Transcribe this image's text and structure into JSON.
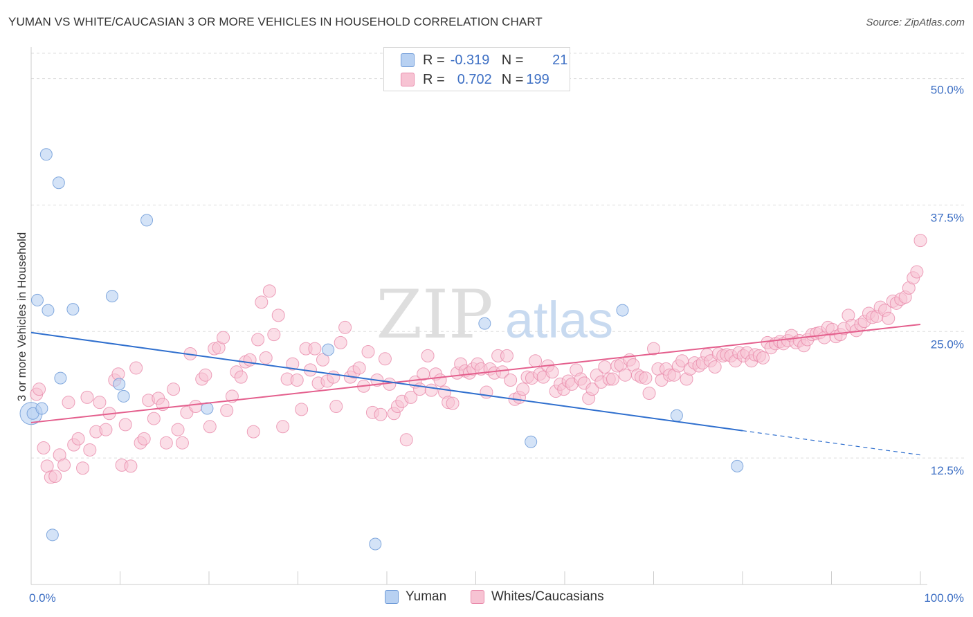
{
  "title": "YUMAN VS WHITE/CAUCASIAN 3 OR MORE VEHICLES IN HOUSEHOLD CORRELATION CHART",
  "source": "Source: ZipAtlas.com",
  "watermark": {
    "zip": "ZIP",
    "atlas": "atlas"
  },
  "legend": {
    "series": [
      {
        "name": "Yuman",
        "r_label": "R =",
        "r_value": "-0.319",
        "n_label": "N =",
        "n_value": "21"
      },
      {
        "name": "Whites/Caucasians",
        "r_label": "R =",
        "r_value": "0.702",
        "n_label": "N =",
        "n_value": "199"
      }
    ]
  },
  "colors": {
    "yuman_fill": "#b8d1f2",
    "yuman_stroke": "#6f9bd8",
    "yuman_line": "#2f6fce",
    "white_fill": "#f7c3d3",
    "white_stroke": "#e989aa",
    "white_line": "#e45f8d",
    "axis_text": "#3d6fc4",
    "grid": "#dddddd"
  },
  "chart_data": {
    "type": "scatter",
    "title": "YUMAN VS WHITE/CAUCASIAN 3 OR MORE VEHICLES IN HOUSEHOLD CORRELATION CHART",
    "xlabel": "",
    "ylabel": "3 or more Vehicles in Household",
    "xlim": [
      0,
      100
    ],
    "ylim": [
      0,
      52.5
    ],
    "x_tick_labels": [
      "0.0%",
      "100.0%"
    ],
    "y_ticks": [
      12.5,
      25.0,
      37.5,
      50.0
    ],
    "y_tick_labels": [
      "12.5%",
      "25.0%",
      "37.5%",
      "50.0%"
    ],
    "grid": true,
    "legend_position": "top-center",
    "series": [
      {
        "name": "Yuman",
        "r": -0.319,
        "n": 21,
        "trend": {
          "x_start": 0,
          "y_start": 24.9,
          "x_solid_end": 80,
          "y_solid_end": 15.2,
          "x_end": 100,
          "y_end": 12.8
        },
        "points": [
          [
            0.2,
            16.9
          ],
          [
            0.7,
            28.1
          ],
          [
            1.2,
            17.4
          ],
          [
            1.7,
            42.5
          ],
          [
            1.9,
            27.1
          ],
          [
            2.4,
            4.9
          ],
          [
            3.1,
            39.7
          ],
          [
            3.3,
            20.4
          ],
          [
            4.7,
            27.2
          ],
          [
            9.1,
            28.5
          ],
          [
            9.9,
            19.8
          ],
          [
            10.4,
            18.6
          ],
          [
            13.0,
            36.0
          ],
          [
            19.8,
            17.4
          ],
          [
            33.4,
            23.2
          ],
          [
            38.7,
            4.0
          ],
          [
            51.0,
            25.8
          ],
          [
            56.2,
            14.1
          ],
          [
            66.5,
            27.1
          ],
          [
            72.6,
            16.7
          ],
          [
            79.4,
            11.7
          ]
        ]
      },
      {
        "name": "Whites/Caucasians",
        "r": 0.702,
        "n": 199,
        "trend": {
          "x_start": 0,
          "y_start": 16.0,
          "x_end": 100,
          "y_end": 25.7
        },
        "points": [
          [
            0.6,
            18.8
          ],
          [
            0.9,
            19.3
          ],
          [
            1.4,
            13.5
          ],
          [
            1.8,
            11.7
          ],
          [
            2.2,
            10.6
          ],
          [
            2.7,
            10.7
          ],
          [
            3.2,
            12.8
          ],
          [
            3.7,
            11.8
          ],
          [
            4.2,
            18.0
          ],
          [
            4.8,
            13.8
          ],
          [
            5.3,
            14.4
          ],
          [
            5.8,
            11.5
          ],
          [
            6.3,
            18.5
          ],
          [
            6.6,
            13.3
          ],
          [
            7.3,
            15.1
          ],
          [
            7.7,
            18.0
          ],
          [
            8.4,
            15.3
          ],
          [
            8.8,
            16.9
          ],
          [
            9.4,
            20.2
          ],
          [
            9.8,
            20.8
          ],
          [
            10.2,
            11.8
          ],
          [
            10.6,
            15.8
          ],
          [
            11.2,
            11.7
          ],
          [
            11.8,
            21.4
          ],
          [
            12.3,
            14.0
          ],
          [
            12.7,
            14.4
          ],
          [
            13.2,
            18.2
          ],
          [
            13.8,
            16.4
          ],
          [
            14.3,
            18.4
          ],
          [
            14.8,
            17.8
          ],
          [
            15.2,
            14.0
          ],
          [
            16.0,
            19.3
          ],
          [
            16.5,
            15.3
          ],
          [
            17.0,
            14.0
          ],
          [
            17.5,
            17.0
          ],
          [
            17.9,
            22.8
          ],
          [
            18.5,
            17.6
          ],
          [
            19.2,
            20.3
          ],
          [
            19.6,
            20.7
          ],
          [
            20.1,
            15.6
          ],
          [
            20.6,
            23.3
          ],
          [
            21.1,
            23.4
          ],
          [
            21.6,
            24.4
          ],
          [
            22.0,
            17.2
          ],
          [
            22.6,
            18.6
          ],
          [
            23.1,
            21.0
          ],
          [
            23.6,
            20.5
          ],
          [
            24.1,
            22.0
          ],
          [
            24.6,
            22.2
          ],
          [
            25.0,
            15.1
          ],
          [
            25.5,
            24.2
          ],
          [
            25.9,
            27.9
          ],
          [
            26.4,
            22.4
          ],
          [
            26.8,
            29.0
          ],
          [
            27.3,
            24.7
          ],
          [
            27.8,
            26.6
          ],
          [
            28.3,
            15.6
          ],
          [
            28.8,
            20.3
          ],
          [
            29.4,
            21.8
          ],
          [
            29.9,
            20.2
          ],
          [
            30.4,
            17.3
          ],
          [
            30.9,
            23.3
          ],
          [
            31.4,
            21.2
          ],
          [
            31.9,
            23.3
          ],
          [
            32.3,
            19.9
          ],
          [
            32.8,
            22.2
          ],
          [
            33.3,
            20.1
          ],
          [
            34.0,
            20.5
          ],
          [
            34.3,
            17.6
          ],
          [
            34.8,
            23.9
          ],
          [
            35.3,
            25.4
          ],
          [
            35.9,
            20.5
          ],
          [
            36.3,
            21.0
          ],
          [
            36.9,
            21.4
          ],
          [
            37.4,
            19.6
          ],
          [
            37.9,
            23.0
          ],
          [
            38.4,
            17.0
          ],
          [
            38.9,
            20.2
          ],
          [
            39.3,
            16.8
          ],
          [
            39.8,
            22.3
          ],
          [
            40.3,
            19.8
          ],
          [
            40.8,
            16.9
          ],
          [
            41.2,
            17.6
          ],
          [
            41.7,
            18.1
          ],
          [
            42.2,
            14.3
          ],
          [
            42.7,
            18.5
          ],
          [
            43.2,
            20.0
          ],
          [
            43.7,
            19.3
          ],
          [
            44.1,
            20.8
          ],
          [
            44.6,
            22.6
          ],
          [
            45.0,
            19.2
          ],
          [
            45.5,
            20.8
          ],
          [
            46.0,
            20.2
          ],
          [
            46.5,
            19.0
          ],
          [
            46.9,
            18.0
          ],
          [
            47.4,
            17.9
          ],
          [
            47.9,
            20.9
          ],
          [
            48.3,
            21.8
          ],
          [
            48.8,
            21.1
          ],
          [
            49.3,
            20.9
          ],
          [
            49.7,
            21.3
          ],
          [
            50.2,
            21.8
          ],
          [
            50.6,
            21.3
          ],
          [
            51.2,
            19.0
          ],
          [
            51.6,
            21.3
          ],
          [
            52.1,
            20.9
          ],
          [
            52.5,
            22.6
          ],
          [
            53.0,
            21.0
          ],
          [
            53.5,
            22.6
          ],
          [
            53.9,
            20.2
          ],
          [
            54.4,
            18.3
          ],
          [
            54.9,
            18.5
          ],
          [
            55.3,
            19.3
          ],
          [
            55.8,
            20.5
          ],
          [
            56.3,
            20.4
          ],
          [
            56.7,
            22.1
          ],
          [
            57.2,
            20.8
          ],
          [
            57.6,
            20.5
          ],
          [
            58.1,
            21.6
          ],
          [
            58.6,
            21.0
          ],
          [
            59.0,
            19.1
          ],
          [
            59.5,
            19.8
          ],
          [
            59.9,
            19.3
          ],
          [
            60.4,
            20.1
          ],
          [
            60.8,
            19.8
          ],
          [
            61.3,
            21.2
          ],
          [
            61.8,
            20.3
          ],
          [
            62.2,
            19.9
          ],
          [
            62.7,
            18.4
          ],
          [
            63.1,
            19.3
          ],
          [
            63.6,
            20.7
          ],
          [
            64.1,
            20.0
          ],
          [
            64.5,
            21.5
          ],
          [
            65.0,
            20.3
          ],
          [
            65.4,
            20.3
          ],
          [
            65.9,
            21.6
          ],
          [
            66.3,
            21.7
          ],
          [
            66.8,
            20.7
          ],
          [
            67.3,
            22.2
          ],
          [
            67.7,
            21.7
          ],
          [
            68.2,
            20.7
          ],
          [
            68.6,
            20.5
          ],
          [
            69.1,
            20.4
          ],
          [
            69.5,
            18.9
          ],
          [
            70.0,
            23.3
          ],
          [
            70.5,
            21.3
          ],
          [
            70.9,
            20.2
          ],
          [
            71.4,
            21.3
          ],
          [
            71.8,
            20.7
          ],
          [
            72.3,
            20.7
          ],
          [
            72.8,
            21.6
          ],
          [
            73.2,
            22.1
          ],
          [
            73.7,
            20.3
          ],
          [
            74.1,
            21.3
          ],
          [
            74.6,
            21.9
          ],
          [
            75.1,
            21.6
          ],
          [
            75.5,
            21.9
          ],
          [
            76.0,
            22.7
          ],
          [
            76.4,
            22.1
          ],
          [
            76.9,
            21.5
          ],
          [
            77.3,
            22.8
          ],
          [
            77.8,
            22.6
          ],
          [
            78.2,
            22.7
          ],
          [
            78.7,
            22.6
          ],
          [
            79.2,
            22.1
          ],
          [
            79.6,
            22.9
          ],
          [
            80.1,
            22.6
          ],
          [
            80.5,
            22.9
          ],
          [
            81.0,
            22.1
          ],
          [
            81.4,
            22.7
          ],
          [
            81.9,
            22.6
          ],
          [
            82.3,
            22.4
          ],
          [
            82.8,
            23.9
          ],
          [
            83.2,
            23.4
          ],
          [
            83.7,
            23.8
          ],
          [
            84.2,
            24.0
          ],
          [
            84.6,
            23.8
          ],
          [
            85.1,
            24.1
          ],
          [
            85.5,
            24.6
          ],
          [
            86.0,
            23.9
          ],
          [
            86.4,
            24.1
          ],
          [
            86.9,
            23.6
          ],
          [
            87.3,
            24.2
          ],
          [
            87.8,
            24.7
          ],
          [
            88.3,
            24.8
          ],
          [
            88.7,
            24.9
          ],
          [
            89.2,
            24.4
          ],
          [
            89.6,
            25.4
          ],
          [
            90.1,
            25.2
          ],
          [
            90.5,
            24.5
          ],
          [
            91.0,
            24.7
          ],
          [
            91.4,
            25.3
          ],
          [
            91.9,
            26.6
          ],
          [
            92.3,
            25.6
          ],
          [
            92.8,
            25.1
          ],
          [
            93.3,
            25.7
          ],
          [
            93.7,
            26.0
          ],
          [
            94.2,
            26.8
          ],
          [
            94.6,
            26.4
          ],
          [
            95.1,
            26.5
          ],
          [
            95.5,
            27.4
          ],
          [
            96.0,
            27.1
          ],
          [
            96.4,
            26.3
          ],
          [
            96.9,
            28.0
          ],
          [
            97.3,
            27.8
          ],
          [
            97.8,
            28.2
          ],
          [
            98.3,
            28.4
          ],
          [
            98.7,
            29.3
          ],
          [
            99.2,
            30.3
          ],
          [
            99.6,
            30.9
          ],
          [
            100.0,
            34.0
          ]
        ]
      }
    ]
  }
}
